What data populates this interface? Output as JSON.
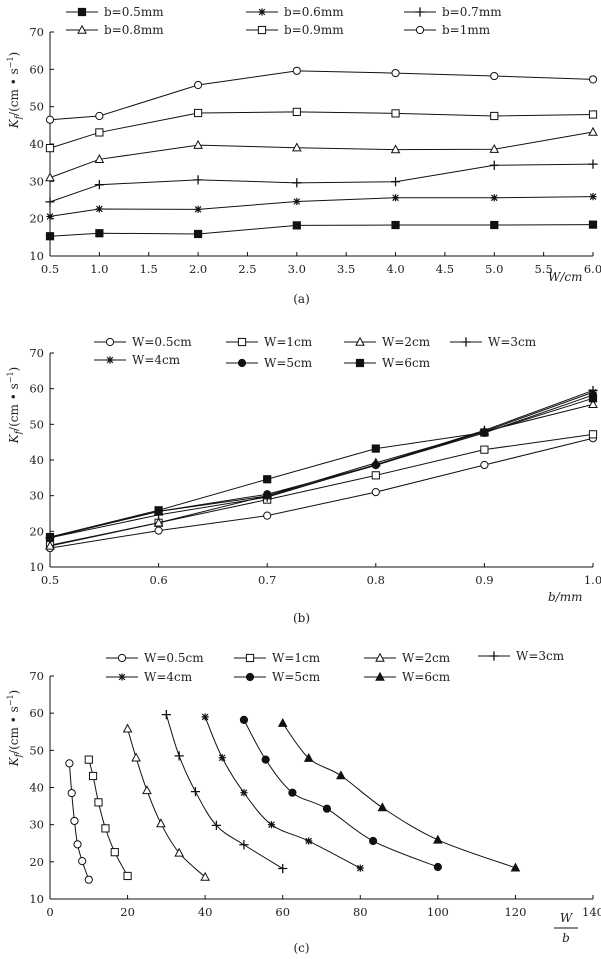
{
  "chart_data": [
    {
      "type": "line",
      "panel": "(a)",
      "caption": "(a)",
      "ylabel": "K_f/(cm·s⁻¹)",
      "xlabel": "W/cm",
      "ylim": [
        10,
        70
      ],
      "yticks": [
        "10",
        "20",
        "30",
        "40",
        "50",
        "60",
        "70"
      ],
      "x": [
        0.5,
        1.0,
        2.0,
        3.0,
        4.0,
        5.0,
        6.0
      ],
      "xticks": [
        "0.5",
        "1.0",
        "1.5",
        "2.0",
        "2.5",
        "3.0",
        "3.5",
        "4.0",
        "4.5",
        "5.0",
        "5.5",
        "6.0"
      ],
      "legend_position": "top",
      "series": [
        {
          "name": "b=0.5mm",
          "marker": "square-filled",
          "values": [
            15.3,
            16.1,
            15.9,
            18.2,
            18.3,
            18.3,
            18.4
          ]
        },
        {
          "name": "b=0.6mm",
          "marker": "asterisk",
          "values": [
            20.6,
            22.6,
            22.5,
            24.6,
            25.6,
            25.6,
            25.9
          ]
        },
        {
          "name": "b=0.7mm",
          "marker": "plus",
          "values": [
            24.5,
            29.1,
            30.4,
            29.6,
            29.9,
            34.3,
            34.6
          ]
        },
        {
          "name": "b=0.8mm",
          "marker": "triangle-open",
          "values": [
            31.0,
            35.9,
            39.7,
            39.0,
            38.5,
            38.6,
            43.2
          ]
        },
        {
          "name": "b=0.9mm",
          "marker": "square-open",
          "values": [
            38.9,
            43.1,
            48.3,
            48.6,
            48.2,
            47.5,
            47.9
          ]
        },
        {
          "name": "b=1mm",
          "marker": "circle-open",
          "values": [
            46.5,
            47.5,
            55.8,
            59.6,
            59.0,
            58.2,
            57.3
          ]
        }
      ]
    },
    {
      "type": "line",
      "panel": "(b)",
      "caption": "(b)",
      "ylabel": "K_f/(cm·s⁻¹)",
      "xlabel": "b/mm",
      "ylim": [
        10,
        70
      ],
      "yticks": [
        "10",
        "20",
        "30",
        "40",
        "50",
        "60",
        "70"
      ],
      "xlim": [
        0.5,
        1.0
      ],
      "xticks": [
        "0.5",
        "0.6",
        "0.7",
        "0.8",
        "0.9",
        "1.0"
      ],
      "x": [
        0.5,
        0.6,
        0.7,
        0.8,
        0.9,
        1.0
      ],
      "legend_position": "top",
      "series": [
        {
          "name": "W=0.5cm",
          "marker": "circle-open",
          "values": [
            15.3,
            20.2,
            24.4,
            31.0,
            38.6,
            46.1
          ]
        },
        {
          "name": "W=1cm",
          "marker": "square-open",
          "values": [
            16.1,
            22.4,
            28.9,
            35.7,
            42.9,
            47.2
          ]
        },
        {
          "name": "W=2cm",
          "marker": "triangle-open",
          "values": [
            15.9,
            22.4,
            30.0,
            39.2,
            48.0,
            55.6
          ]
        },
        {
          "name": "W=3cm",
          "marker": "plus",
          "values": [
            18.2,
            24.6,
            29.6,
            38.7,
            48.3,
            59.5
          ]
        },
        {
          "name": "W=4cm",
          "marker": "asterisk",
          "values": [
            18.3,
            25.6,
            29.9,
            38.5,
            48.0,
            59.0
          ]
        },
        {
          "name": "W=5cm",
          "marker": "circle-filled",
          "values": [
            18.3,
            25.6,
            30.4,
            38.6,
            47.6,
            58.2
          ]
        },
        {
          "name": "W=6cm",
          "marker": "square-filled",
          "values": [
            18.4,
            25.9,
            34.6,
            43.2,
            47.7,
            57.3
          ]
        }
      ]
    },
    {
      "type": "line",
      "panel": "(c)",
      "caption": "(c)",
      "ylabel": "K_f/(cm·s⁻¹)",
      "xlabel_numerator": "W",
      "xlabel_denominator": "b",
      "ylim": [
        10,
        70
      ],
      "yticks": [
        "10",
        "20",
        "30",
        "40",
        "50",
        "60",
        "70"
      ],
      "xlim": [
        0,
        140
      ],
      "xticks": [
        "0",
        "20",
        "40",
        "60",
        "80",
        "100",
        "120",
        "140"
      ],
      "legend_position": "top",
      "series": [
        {
          "name": "W=0.5cm",
          "marker": "circle-open",
          "points": [
            [
              5,
              46.5
            ],
            [
              5.6,
              38.5
            ],
            [
              6.3,
              31.0
            ],
            [
              7.1,
              24.7
            ],
            [
              8.3,
              20.2
            ],
            [
              10,
              15.2
            ]
          ]
        },
        {
          "name": "W=1cm",
          "marker": "square-open",
          "points": [
            [
              10,
              47.5
            ],
            [
              11.1,
              43.1
            ],
            [
              12.5,
              36.0
            ],
            [
              14.3,
              29.0
            ],
            [
              16.7,
              22.6
            ],
            [
              20,
              16.2
            ]
          ]
        },
        {
          "name": "W=2cm",
          "marker": "triangle-open",
          "points": [
            [
              20,
              55.8
            ],
            [
              22.2,
              48.0
            ],
            [
              25,
              39.2
            ],
            [
              28.6,
              30.3
            ],
            [
              33.3,
              22.4
            ],
            [
              40,
              15.9
            ]
          ]
        },
        {
          "name": "W=3cm",
          "marker": "plus",
          "points": [
            [
              30,
              59.6
            ],
            [
              33.3,
              48.5
            ],
            [
              37.5,
              38.9
            ],
            [
              42.9,
              29.8
            ],
            [
              50,
              24.6
            ],
            [
              60,
              18.2
            ]
          ]
        },
        {
          "name": "W=4cm",
          "marker": "asterisk",
          "points": [
            [
              40,
              59.0
            ],
            [
              44.4,
              48.0
            ],
            [
              50,
              38.6
            ],
            [
              57.1,
              30.0
            ],
            [
              66.7,
              25.6
            ],
            [
              80,
              18.3
            ]
          ]
        },
        {
          "name": "W=5cm",
          "marker": "circle-filled",
          "points": [
            [
              50,
              58.2
            ],
            [
              55.6,
              47.5
            ],
            [
              62.5,
              38.6
            ],
            [
              71.4,
              34.3
            ],
            [
              83.3,
              25.6
            ],
            [
              100,
              18.6
            ]
          ]
        },
        {
          "name": "W=6cm",
          "marker": "triangle-filled",
          "points": [
            [
              60,
              57.3
            ],
            [
              66.7,
              47.9
            ],
            [
              75,
              43.2
            ],
            [
              85.7,
              34.6
            ],
            [
              100,
              25.9
            ],
            [
              120,
              18.4
            ]
          ]
        }
      ]
    }
  ]
}
